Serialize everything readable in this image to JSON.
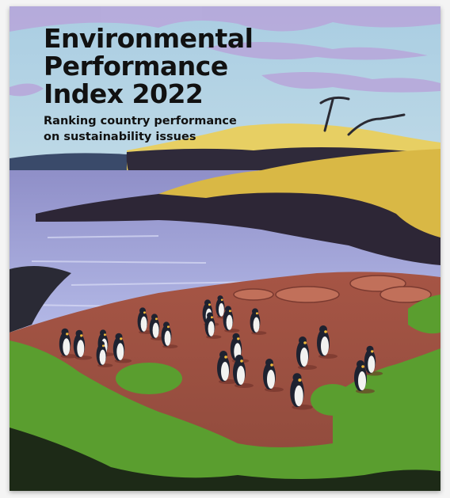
{
  "cover": {
    "title": [
      "Environmental",
      "Performance",
      "Index 2022"
    ],
    "subtitle": [
      "Ranking country performance",
      "on sustainability issues"
    ]
  }
}
